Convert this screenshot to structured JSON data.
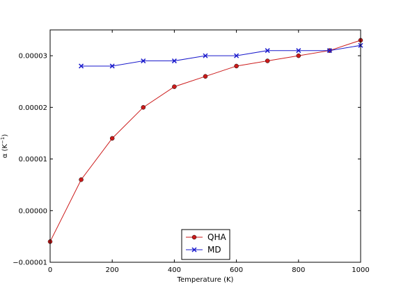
{
  "chart_data": {
    "type": "line",
    "title": "",
    "xlabel": "Temperature (K)",
    "ylabel_prefix": "α (K",
    "ylabel_exponent": "−1",
    "ylabel_suffix": ")",
    "xlim": [
      0,
      1000
    ],
    "ylim": [
      -1e-05,
      3.5e-05
    ],
    "xticks": [
      0,
      200,
      400,
      600,
      800,
      1000
    ],
    "xtick_labels": [
      "0",
      "200",
      "400",
      "600",
      "800",
      "1000"
    ],
    "yticks": [
      -1e-05,
      0.0,
      1e-05,
      2e-05,
      3e-05
    ],
    "ytick_labels": [
      "−0.00001",
      "0.00000",
      "0.00001",
      "0.00002",
      "0.00003"
    ],
    "grid": false,
    "legend_position": "lower center",
    "series": [
      {
        "name": "QHA",
        "color": "#cc1a1a",
        "marker": "circle",
        "x": [
          0,
          100,
          200,
          300,
          400,
          500,
          600,
          700,
          800,
          900,
          1000
        ],
        "y": [
          -6e-06,
          6e-06,
          1.4e-05,
          2e-05,
          2.4e-05,
          2.6e-05,
          2.8e-05,
          2.9e-05,
          3e-05,
          3.1e-05,
          3.3e-05
        ]
      },
      {
        "name": "MD",
        "color": "#1a1acc",
        "marker": "x",
        "x": [
          100,
          200,
          300,
          400,
          500,
          600,
          700,
          800,
          900,
          1000
        ],
        "y": [
          2.8e-05,
          2.8e-05,
          2.9e-05,
          2.9e-05,
          3e-05,
          3e-05,
          3.1e-05,
          3.1e-05,
          3.1e-05,
          3.2e-05
        ]
      }
    ]
  }
}
